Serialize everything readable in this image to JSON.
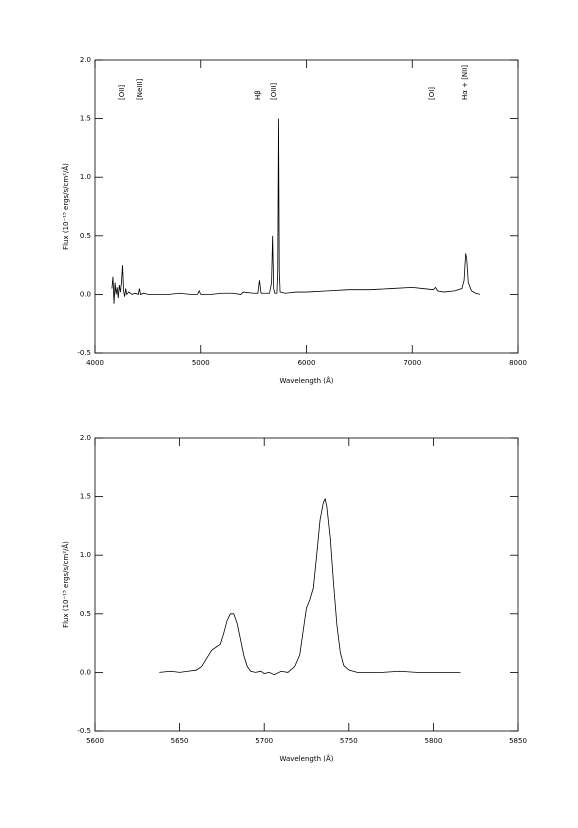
{
  "chart_data": [
    {
      "type": "line",
      "xlabel": "Wavelength (Å)",
      "ylabel": "Flux (10⁻¹⁵ ergs/s/cm²/Å)",
      "xlim": [
        4000,
        8000
      ],
      "xticks": [
        4000,
        5000,
        6000,
        7000,
        8000
      ],
      "ylim": [
        -0.5,
        2.0
      ],
      "yticks": [
        -0.5,
        {
          "value": 0,
          "label": "0.0"
        },
        0.5,
        {
          "value": 1,
          "label": "1.0"
        },
        1.5,
        {
          "value": 2,
          "label": "2.0"
        }
      ],
      "annotations": [
        {
          "text": "[OII]",
          "x": 4255
        },
        {
          "text": "[NeIII]",
          "x": 4425
        },
        {
          "text": "Hβ",
          "x": 5541
        },
        {
          "text": "[OIII]",
          "x": 5693
        },
        {
          "text": "[OI]",
          "x": 7187
        },
        {
          "text": "Hα + [NII]",
          "x": 7499
        }
      ],
      "x": [
        4160,
        4170,
        4180,
        4190,
        4200,
        4210,
        4220,
        4230,
        4240,
        4250,
        4260,
        4270,
        4280,
        4290,
        4300,
        4320,
        4350,
        4380,
        4410,
        4420,
        4430,
        4460,
        4500,
        4600,
        4700,
        4800,
        4900,
        4970,
        4985,
        5000,
        5100,
        5200,
        5300,
        5380,
        5400,
        5500,
        5540,
        5555,
        5570,
        5600,
        5650,
        5670,
        5680,
        5690,
        5700,
        5720,
        5728,
        5735,
        5742,
        5750,
        5800,
        5900,
        6000,
        6200,
        6400,
        6600,
        6800,
        7000,
        7100,
        7200,
        7220,
        7240,
        7300,
        7400,
        7470,
        7490,
        7505,
        7515,
        7530,
        7560,
        7600,
        7640
      ],
      "series": [
        {
          "color": "#000000",
          "values": [
            0.05,
            0.15,
            -0.08,
            0.1,
            0.0,
            0.06,
            -0.03,
            0.08,
            0.02,
            0.1,
            0.25,
            0.03,
            -0.02,
            0.05,
            0.0,
            0.02,
            0.0,
            0.01,
            0.0,
            0.05,
            0.0,
            0.01,
            0.0,
            0.0,
            0.0,
            0.01,
            0.0,
            0.0,
            0.03,
            0.0,
            0.0,
            0.01,
            0.01,
            0.0,
            0.02,
            0.01,
            0.01,
            0.12,
            0.01,
            0.01,
            0.01,
            0.1,
            0.5,
            0.05,
            0.01,
            0.01,
            0.2,
            1.5,
            0.2,
            0.02,
            0.01,
            0.02,
            0.02,
            0.03,
            0.04,
            0.04,
            0.05,
            0.06,
            0.05,
            0.04,
            0.06,
            0.03,
            0.02,
            0.03,
            0.05,
            0.12,
            0.35,
            0.3,
            0.1,
            0.03,
            0.01,
            0.0
          ]
        }
      ]
    },
    {
      "type": "line",
      "xlabel": "Wavelength (Å)",
      "ylabel": "Flux (10⁻¹⁵ ergs/s/cm²/Å)",
      "xlim": [
        5600,
        5850
      ],
      "xticks": [
        5600,
        5650,
        5700,
        5750,
        5800,
        5850
      ],
      "ylim": [
        -0.5,
        2.0
      ],
      "yticks": [
        -0.5,
        {
          "value": 0,
          "label": "0.0"
        },
        0.5,
        {
          "value": 1,
          "label": "1.0"
        },
        1.5,
        {
          "value": 2,
          "label": "2.0"
        }
      ],
      "x": [
        5638,
        5645,
        5650,
        5655,
        5660,
        5663,
        5666,
        5669,
        5672,
        5674,
        5676,
        5678,
        5680,
        5682,
        5684,
        5686,
        5688,
        5690,
        5692,
        5695,
        5698,
        5700,
        5703,
        5706,
        5710,
        5714,
        5718,
        5721,
        5723,
        5725,
        5727,
        5729,
        5731,
        5733,
        5735,
        5736,
        5737,
        5739,
        5741,
        5743,
        5745,
        5747,
        5750,
        5755,
        5760,
        5770,
        5780,
        5790,
        5800,
        5810,
        5816
      ],
      "series": [
        {
          "color": "#000000",
          "values": [
            0.0,
            0.01,
            0.0,
            0.01,
            0.02,
            0.05,
            0.12,
            0.19,
            0.22,
            0.24,
            0.33,
            0.44,
            0.5,
            0.5,
            0.42,
            0.28,
            0.14,
            0.05,
            0.01,
            0.0,
            0.01,
            -0.01,
            0.0,
            -0.02,
            0.01,
            0.0,
            0.05,
            0.15,
            0.35,
            0.55,
            0.62,
            0.72,
            1.0,
            1.3,
            1.45,
            1.48,
            1.42,
            1.15,
            0.75,
            0.4,
            0.17,
            0.06,
            0.02,
            0.0,
            0.0,
            0.0,
            0.01,
            0.0,
            0.0,
            0.0,
            0.0
          ]
        }
      ]
    }
  ]
}
